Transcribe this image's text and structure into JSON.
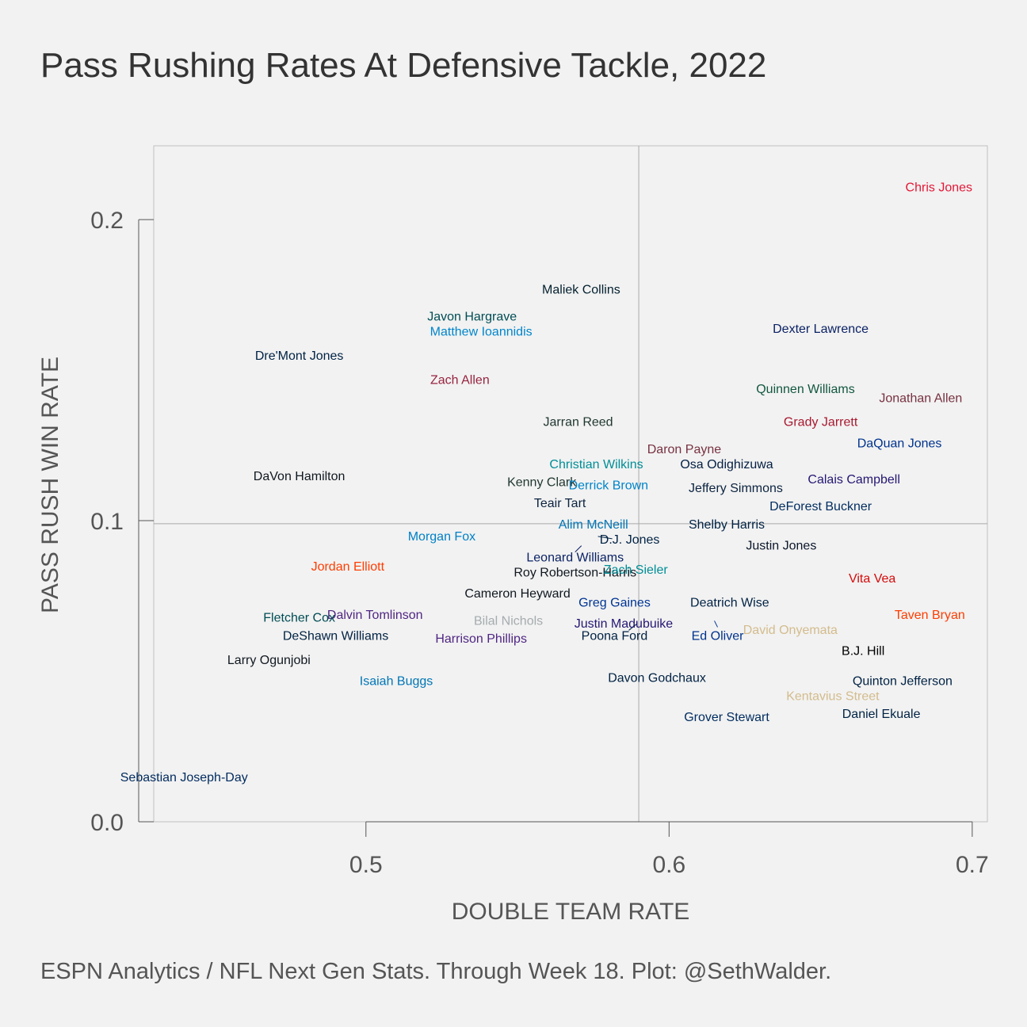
{
  "title": "Pass Rushing Rates At Defensive Tackle, 2022",
  "caption": "ESPN Analytics / NFL Next Gen Stats. Through Week 18. Plot: @SethWalder.",
  "chart_data": {
    "type": "scatter",
    "title": "Pass Rushing Rates At Defensive Tackle, 2022",
    "xlabel": "DOUBLE TEAM RATE",
    "ylabel": "PASS RUSH WIN RATE",
    "xlim": [
      0.43,
      0.705
    ],
    "ylim": [
      0.0,
      0.2245
    ],
    "xticks": [
      0.5,
      0.6,
      0.7
    ],
    "xtick_labels": [
      "0.5",
      "0.6",
      "0.7"
    ],
    "yticks": [
      0.0,
      0.1,
      0.2
    ],
    "ytick_labels": [
      "0.0",
      "0.1",
      "0.2"
    ],
    "reference_lines": {
      "x": 0.59,
      "y": 0.099
    },
    "grid": false,
    "points": [
      {
        "label": "Chris Jones",
        "x": 0.689,
        "y": 0.211,
        "color": "#e31837"
      },
      {
        "label": "Maliek Collins",
        "x": 0.571,
        "y": 0.177,
        "color": "#03202f"
      },
      {
        "label": "Javon Hargrave",
        "x": 0.535,
        "y": 0.168,
        "color": "#004c54"
      },
      {
        "label": "Matthew Ioannidis",
        "x": 0.538,
        "y": 0.163,
        "color": "#0085ca"
      },
      {
        "label": "Dexter Lawrence",
        "x": 0.65,
        "y": 0.164,
        "color": "#0b2265"
      },
      {
        "label": "Dre'Mont Jones",
        "x": 0.478,
        "y": 0.155,
        "color": "#002244"
      },
      {
        "label": "Zach Allen",
        "x": 0.531,
        "y": 0.147,
        "color": "#97233f"
      },
      {
        "label": "Quinnen Williams",
        "x": 0.645,
        "y": 0.144,
        "color": "#125740"
      },
      {
        "label": "Jonathan Allen",
        "x": 0.683,
        "y": 0.141,
        "color": "#773141"
      },
      {
        "label": "Jarran Reed",
        "x": 0.57,
        "y": 0.133,
        "color": "#203731"
      },
      {
        "label": "Grady Jarrett",
        "x": 0.65,
        "y": 0.133,
        "color": "#a71930"
      },
      {
        "label": "DaQuan Jones",
        "x": 0.676,
        "y": 0.126,
        "color": "#00338d"
      },
      {
        "label": "Daron Payne",
        "x": 0.605,
        "y": 0.124,
        "color": "#773141"
      },
      {
        "label": "Christian Wilkins",
        "x": 0.576,
        "y": 0.119,
        "color": "#008e97"
      },
      {
        "label": "Osa Odighizuwa",
        "x": 0.619,
        "y": 0.119,
        "color": "#041e42"
      },
      {
        "label": "DaVon Hamilton",
        "x": 0.478,
        "y": 0.115,
        "color": "#101820"
      },
      {
        "label": "Calais Campbell",
        "x": 0.661,
        "y": 0.114,
        "color": "#241773"
      },
      {
        "label": "Kenny Clark",
        "x": 0.558,
        "y": 0.113,
        "color": "#203731"
      },
      {
        "label": "Derrick Brown",
        "x": 0.58,
        "y": 0.112,
        "color": "#0085ca"
      },
      {
        "label": "Jeffery Simmons",
        "x": 0.622,
        "y": 0.111,
        "color": "#0c2340"
      },
      {
        "label": "Teair Tart",
        "x": 0.564,
        "y": 0.106,
        "color": "#0c2340"
      },
      {
        "label": "DeForest Buckner",
        "x": 0.65,
        "y": 0.105,
        "color": "#002c5f"
      },
      {
        "label": "Alim McNeill",
        "x": 0.575,
        "y": 0.099,
        "color": "#0076b6"
      },
      {
        "label": "Shelby Harris",
        "x": 0.619,
        "y": 0.099,
        "color": "#002244"
      },
      {
        "label": "Morgan Fox",
        "x": 0.525,
        "y": 0.095,
        "color": "#0080c6"
      },
      {
        "label": "D.J. Jones",
        "x": 0.587,
        "y": 0.094,
        "color": "#002244"
      },
      {
        "label": "Justin Jones",
        "x": 0.637,
        "y": 0.092,
        "color": "#0b162a"
      },
      {
        "label": "Leonard Williams",
        "x": 0.569,
        "y": 0.088,
        "color": "#0b2265"
      },
      {
        "label": "Roy Robertson-Harris",
        "x": 0.569,
        "y": 0.083,
        "color": "#101820"
      },
      {
        "label": "Zach Sieler",
        "x": 0.589,
        "y": 0.084,
        "color": "#008e97"
      },
      {
        "label": "Jordan Elliott",
        "x": 0.494,
        "y": 0.085,
        "color": "#ff3c00"
      },
      {
        "label": "Vita Vea",
        "x": 0.667,
        "y": 0.081,
        "color": "#d50a0a"
      },
      {
        "label": "Cameron Heyward",
        "x": 0.55,
        "y": 0.076,
        "color": "#101820"
      },
      {
        "label": "Greg Gaines",
        "x": 0.582,
        "y": 0.073,
        "color": "#003594"
      },
      {
        "label": "Deatrich Wise",
        "x": 0.62,
        "y": 0.073,
        "color": "#002244"
      },
      {
        "label": "Dalvin Tomlinson",
        "x": 0.503,
        "y": 0.069,
        "color": "#4f2683"
      },
      {
        "label": "Taven Bryan",
        "x": 0.686,
        "y": 0.069,
        "color": "#ff3c00"
      },
      {
        "label": "Fletcher Cox",
        "x": 0.478,
        "y": 0.068,
        "color": "#004c54"
      },
      {
        "label": "Bilal Nichols",
        "x": 0.547,
        "y": 0.067,
        "color": "#a5acaf"
      },
      {
        "label": "Justin Madubuike",
        "x": 0.585,
        "y": 0.066,
        "color": "#241773"
      },
      {
        "label": "David Onyemata",
        "x": 0.64,
        "y": 0.064,
        "color": "#d3bc8d"
      },
      {
        "label": "Ed Oliver",
        "x": 0.616,
        "y": 0.062,
        "color": "#00338d"
      },
      {
        "label": "Poona Ford",
        "x": 0.582,
        "y": 0.062,
        "color": "#002244"
      },
      {
        "label": "DeShawn Williams",
        "x": 0.49,
        "y": 0.062,
        "color": "#002244"
      },
      {
        "label": "Harrison Phillips",
        "x": 0.538,
        "y": 0.061,
        "color": "#4f2683"
      },
      {
        "label": "B.J. Hill",
        "x": 0.664,
        "y": 0.057,
        "color": "#000000"
      },
      {
        "label": "Larry Ogunjobi",
        "x": 0.468,
        "y": 0.054,
        "color": "#101820"
      },
      {
        "label": "Isaiah Buggs",
        "x": 0.51,
        "y": 0.047,
        "color": "#0076b6"
      },
      {
        "label": "Davon Godchaux",
        "x": 0.596,
        "y": 0.048,
        "color": "#002244"
      },
      {
        "label": "Quinton Jefferson",
        "x": 0.677,
        "y": 0.047,
        "color": "#002244"
      },
      {
        "label": "Kentavius Street",
        "x": 0.654,
        "y": 0.042,
        "color": "#d3bc8d"
      },
      {
        "label": "Grover Stewart",
        "x": 0.619,
        "y": 0.035,
        "color": "#002c5f"
      },
      {
        "label": "Daniel Ekuale",
        "x": 0.67,
        "y": 0.036,
        "color": "#002244"
      },
      {
        "label": "Sebastian Joseph-Day",
        "x": 0.44,
        "y": 0.015,
        "color": "#002a5e"
      }
    ]
  }
}
